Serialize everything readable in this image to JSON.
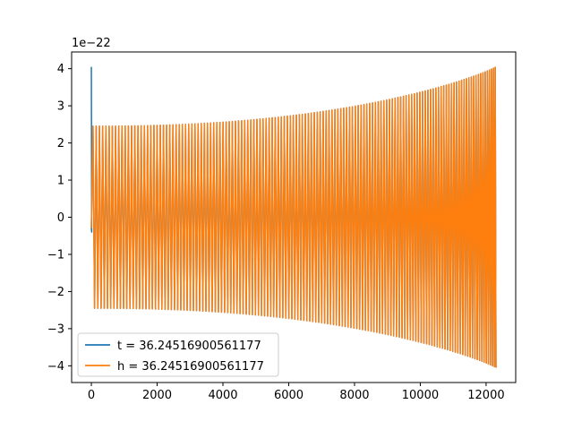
{
  "chart_data": {
    "type": "line",
    "title": "",
    "xlabel": "",
    "ylabel": "",
    "offset_text": "1e−22",
    "xlim": [
      -600,
      12900
    ],
    "ylim": [
      -4.45,
      4.45
    ],
    "x_ticks": [
      0,
      2000,
      4000,
      6000,
      8000,
      10000,
      12000
    ],
    "x_tick_labels": [
      "0",
      "2000",
      "4000",
      "6000",
      "8000",
      "10000",
      "12000"
    ],
    "y_ticks": [
      4,
      3,
      2,
      1,
      0,
      -1,
      -2,
      -3,
      -4
    ],
    "y_tick_labels": [
      "4",
      "3",
      "2",
      "1",
      "0",
      "−1",
      "−2",
      "−3",
      "−4"
    ],
    "grid": false,
    "legend_position": "lower-left",
    "series": [
      {
        "name": "t = 36.24516900561177",
        "color": "#1f77b4",
        "x_start": 0,
        "x_end": 12300,
        "initial_spike": 4.05,
        "amplitude_start": 2.45,
        "amplitude_end": 4.05,
        "cycles": 140
      },
      {
        "name": "h = 36.24516900561177",
        "color": "#ff7f0e",
        "x_start": 0,
        "x_end": 12300,
        "initial_spike": 0,
        "amplitude_start": 2.45,
        "amplitude_end": 4.05,
        "cycles": 140
      }
    ]
  }
}
